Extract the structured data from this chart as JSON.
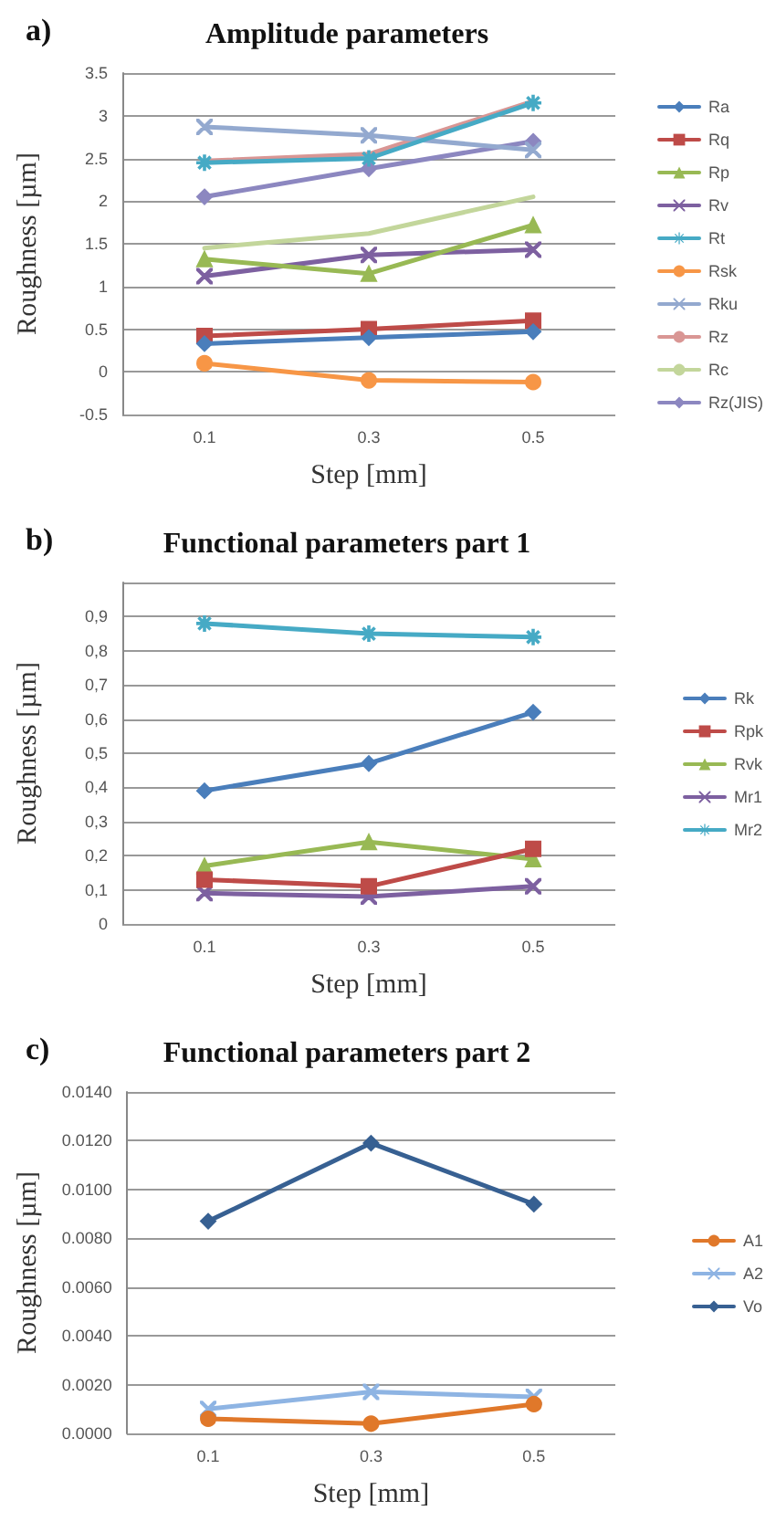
{
  "chart_data": [
    {
      "type": "line",
      "title": "Amplitude parameters",
      "annotations": [
        "a)"
      ],
      "xlabel": "Step [mm]",
      "ylabel": "Roughness [µm]",
      "categories": [
        "0.1",
        "0.3",
        "0.5"
      ],
      "ylim": [
        -0.5,
        3.5
      ],
      "yticks": [
        -0.5,
        0,
        0.5,
        1,
        1.5,
        2,
        2.5,
        3,
        3.5
      ],
      "grid": "y",
      "legend": "right",
      "series": [
        {
          "name": "Ra",
          "color": "#4a7ebb",
          "marker": "diamond",
          "values": [
            0.33,
            0.4,
            0.47
          ]
        },
        {
          "name": "Rq",
          "color": "#be4b48",
          "marker": "square",
          "values": [
            0.42,
            0.5,
            0.6
          ]
        },
        {
          "name": "Rp",
          "color": "#98b954",
          "marker": "triangle",
          "values": [
            1.32,
            1.15,
            1.72
          ]
        },
        {
          "name": "Rv",
          "color": "#7d60a0",
          "marker": "cross",
          "values": [
            1.12,
            1.37,
            1.43
          ]
        },
        {
          "name": "Rt",
          "color": "#46aac5",
          "marker": "star",
          "values": [
            2.45,
            2.5,
            3.15
          ]
        },
        {
          "name": "Rsk",
          "color": "#f79646",
          "marker": "circle",
          "values": [
            0.1,
            -0.1,
            -0.12
          ]
        },
        {
          "name": "Rku",
          "color": "#93a9cf",
          "marker": "cross",
          "values": [
            2.87,
            2.77,
            2.6
          ]
        },
        {
          "name": "Rz",
          "color": "#d99694",
          "marker": "none",
          "values": [
            2.47,
            2.55,
            3.17
          ]
        },
        {
          "name": "Rc",
          "color": "#c3d69b",
          "marker": "none",
          "values": [
            1.45,
            1.62,
            2.05
          ]
        },
        {
          "name": "Rz(JIS)",
          "color": "#8c87c0",
          "marker": "diamond",
          "values": [
            2.05,
            2.38,
            2.7
          ]
        }
      ]
    },
    {
      "type": "line",
      "title": "Functional parameters part 1",
      "annotations": [
        "b)"
      ],
      "xlabel": "Step [mm]",
      "ylabel": "Roughness [µm]",
      "categories": [
        "0.1",
        "0.3",
        "0.5"
      ],
      "ylim": [
        0,
        1
      ],
      "yticks": [
        {
          "value": 0,
          "label": "0"
        },
        {
          "value": 0.1,
          "label": "0,1"
        },
        {
          "value": 0.2,
          "label": "0,2"
        },
        {
          "value": 0.3,
          "label": "0,3"
        },
        {
          "value": 0.4,
          "label": "0,4"
        },
        {
          "value": 0.5,
          "label": "0,5"
        },
        {
          "value": 0.6,
          "label": "0,6"
        },
        {
          "value": 0.7,
          "label": "0,7"
        },
        {
          "value": 0.8,
          "label": "0,8"
        },
        {
          "value": 0.9,
          "label": "0,9"
        },
        {
          "value": 1,
          "label": null
        }
      ],
      "grid": "y",
      "legend": "right",
      "series": [
        {
          "name": "Rk",
          "color": "#4a7ebb",
          "marker": "diamond",
          "values": [
            0.39,
            0.47,
            0.62
          ]
        },
        {
          "name": "Rpk",
          "color": "#be4b48",
          "marker": "square",
          "values": [
            0.13,
            0.11,
            0.22
          ]
        },
        {
          "name": "Rvk",
          "color": "#98b954",
          "marker": "triangle",
          "values": [
            0.17,
            0.24,
            0.19
          ]
        },
        {
          "name": "Mr1",
          "color": "#7d60a0",
          "marker": "cross",
          "values": [
            0.09,
            0.08,
            0.11
          ]
        },
        {
          "name": "Mr2",
          "color": "#46aac5",
          "marker": "star",
          "values": [
            0.88,
            0.85,
            0.84
          ]
        }
      ]
    },
    {
      "type": "line",
      "title": "Functional parameters part 2",
      "annotations": [
        "c)"
      ],
      "xlabel": "Step [mm]",
      "ylabel": "Roughness [µm]",
      "categories": [
        "0.1",
        "0.3",
        "0.5"
      ],
      "ylim": [
        0,
        0.014
      ],
      "yticks": [
        {
          "value": 0,
          "label": "0.0000"
        },
        {
          "value": 0.002,
          "label": "0.0020"
        },
        {
          "value": 0.004,
          "label": "0.0040"
        },
        {
          "value": 0.006,
          "label": "0.0060"
        },
        {
          "value": 0.008,
          "label": "0.0080"
        },
        {
          "value": 0.01,
          "label": "0.0100"
        },
        {
          "value": 0.012,
          "label": "0.0120"
        },
        {
          "value": 0.014,
          "label": "0.0140"
        }
      ],
      "grid": "y",
      "legend": "right",
      "series": [
        {
          "name": "A1",
          "color": "#e0782a",
          "marker": "circle",
          "values": [
            0.0006,
            0.0004,
            0.0012
          ]
        },
        {
          "name": "A2",
          "color": "#8eb4e3",
          "marker": "cross",
          "values": [
            0.001,
            0.0017,
            0.0015
          ]
        },
        {
          "name": "Vo",
          "color": "#376092",
          "marker": "diamond",
          "values": [
            0.0087,
            0.0119,
            0.0094
          ]
        }
      ]
    }
  ]
}
